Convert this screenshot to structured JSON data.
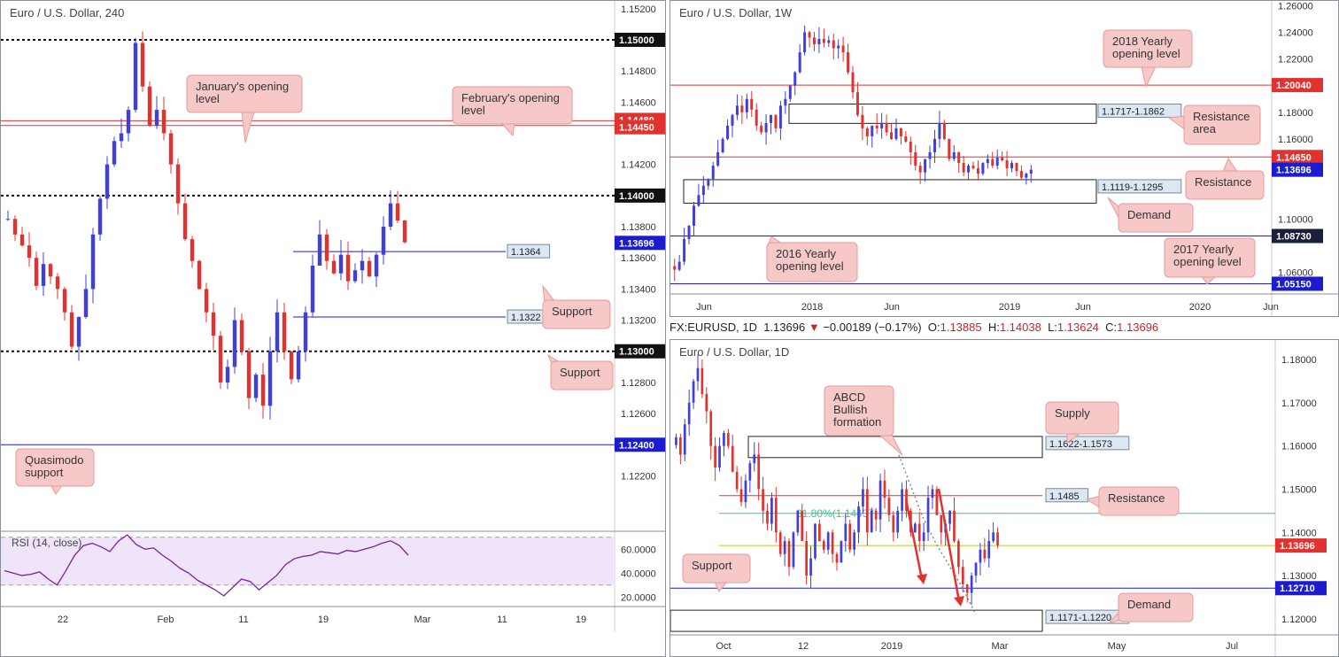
{
  "colors": {
    "bull": "#3f3fd9",
    "bear": "#e0332f",
    "red_level": "#e0332f",
    "blue_level": "#1c1ccf",
    "rsi_line": "#7a1fa2",
    "rsi_bg": "#efe4fa",
    "callout_bg": "#f6c8c8",
    "callout_border": "#e89a9a",
    "fib618": "#3cc48a",
    "fib382": "#c6c12a"
  },
  "header": {
    "symbol": "FX:EURUSD, 1D",
    "price": "1.13696",
    "arrow": "▼",
    "change": "−0.00189 (−0.17%)",
    "o_label": "O:",
    "o": "1.13885",
    "h_label": "H:",
    "h": "1.14038",
    "l_label": "L:",
    "l": "1.13624",
    "c_label": "C:",
    "c": "1.13696"
  },
  "panels": {
    "h4": {
      "title": "Euro / U.S. Dollar, 240"
    },
    "w1": {
      "title": "Euro / U.S. Dollar, 1W"
    },
    "d1": {
      "title": "Euro / U.S. Dollar, 1D"
    }
  },
  "chart_data": [
    {
      "id": "h4",
      "type": "candlestick",
      "title": "Euro / U.S. Dollar, 240",
      "ylim": [
        1.1185,
        1.1525
      ],
      "yticks": [
        "1.15200",
        "1.14800",
        "1.14600",
        "1.14200",
        "1.13800",
        "1.13600",
        "1.13400",
        "1.13200",
        "1.12800",
        "1.12600",
        "1.12200"
      ],
      "xticks": [
        "22",
        "Feb",
        "11",
        "19",
        "Mar",
        "11",
        "19"
      ],
      "levels": [
        {
          "price": 1.15,
          "label": "1.15000",
          "style": "black-dotted"
        },
        {
          "price": 1.1448,
          "label": "1.14480",
          "style": "red"
        },
        {
          "price": 1.1445,
          "label": "1.14450",
          "style": "red"
        },
        {
          "price": 1.14,
          "label": "1.14000",
          "style": "black-dotted"
        },
        {
          "price": 1.13696,
          "label": "1.13696",
          "style": "last-price"
        },
        {
          "price": 1.13,
          "label": "1.13000",
          "style": "black-dotted"
        },
        {
          "price": 1.124,
          "label": "1.12400",
          "style": "blue"
        }
      ],
      "tag_levels": [
        {
          "price": 1.1364,
          "label": "1.1364"
        },
        {
          "price": 1.1322,
          "label": "1.1322"
        }
      ],
      "annotations": [
        "January's opening level",
        "February's opening level",
        "Support",
        "Support",
        "Quasimodo support"
      ],
      "close_path": [
        1.1385,
        1.1375,
        1.1368,
        1.136,
        1.1342,
        1.1356,
        1.1348,
        1.134,
        1.1325,
        1.1303,
        1.1322,
        1.134,
        1.1375,
        1.1398,
        1.142,
        1.1435,
        1.144,
        1.1455,
        1.1498,
        1.147,
        1.1445,
        1.1455,
        1.144,
        1.142,
        1.1395,
        1.1372,
        1.1358,
        1.134,
        1.1325,
        1.131,
        1.128,
        1.129,
        1.132,
        1.13,
        1.127,
        1.1285,
        1.1265,
        1.13,
        1.1325,
        1.13,
        1.1282,
        1.13,
        1.1325,
        1.1355,
        1.1375,
        1.1358,
        1.135,
        1.1362,
        1.1345,
        1.1352,
        1.1358,
        1.1348,
        1.1362,
        1.138,
        1.1395,
        1.1384,
        1.137
      ],
      "rsi": {
        "label": "RSI (14, close)",
        "yticks": [
          "60.0000",
          "40.0000",
          "20.0000"
        ],
        "ylim": [
          15,
          75
        ],
        "values": [
          42,
          40,
          38,
          39,
          41,
          35,
          30,
          42,
          55,
          63,
          65,
          62,
          58,
          67,
          72,
          64,
          60,
          61,
          55,
          50,
          44,
          40,
          34,
          30,
          26,
          21,
          28,
          35,
          33,
          26,
          32,
          38,
          47,
          52,
          54,
          55,
          58,
          57,
          56,
          59,
          58,
          60,
          62,
          65,
          67,
          63,
          55
        ]
      }
    },
    {
      "id": "w1",
      "type": "candlestick",
      "title": "Euro / U.S. Dollar, 1W",
      "ylim": [
        1.0445,
        1.2635
      ],
      "yticks": [
        "1.26000",
        "1.24000",
        "1.22000",
        "1.18000",
        "1.16000",
        "1.10000",
        "1.06000"
      ],
      "xticks": [
        "Jun",
        "2018",
        "Jun",
        "2019",
        "Jun",
        "2020",
        "Jun"
      ],
      "levels": [
        {
          "price": 1.2004,
          "label": "1.20040",
          "style": "red"
        },
        {
          "price": 1.1465,
          "label": "1.14650",
          "style": "red"
        },
        {
          "price": 1.13696,
          "label": "1.13696",
          "style": "last-price"
        },
        {
          "price": 1.0873,
          "label": "1.08730",
          "style": "dark"
        },
        {
          "price": 1.0515,
          "label": "1.05150",
          "style": "blue"
        }
      ],
      "zones": [
        {
          "label": "1.1717-1.1862",
          "top": 1.1862,
          "bottom": 1.1717
        },
        {
          "label": "1.1119-1.1295",
          "top": 1.1295,
          "bottom": 1.1119
        }
      ],
      "annotations": [
        "2018 Yearly opening level",
        "Resistance area",
        "Resistance",
        "Demand",
        "2016 Yearly opening level",
        "2017 Yearly opening level"
      ],
      "close_path": [
        1.062,
        1.068,
        1.085,
        1.095,
        1.11,
        1.118,
        1.125,
        1.13,
        1.14,
        1.15,
        1.16,
        1.17,
        1.178,
        1.185,
        1.18,
        1.19,
        1.182,
        1.17,
        1.165,
        1.172,
        1.178,
        1.168,
        1.185,
        1.19,
        1.2,
        1.21,
        1.225,
        1.24,
        1.236,
        1.231,
        1.235,
        1.232,
        1.234,
        1.228,
        1.23,
        1.225,
        1.21,
        1.195,
        1.178,
        1.168,
        1.162,
        1.17,
        1.168,
        1.172,
        1.165,
        1.16,
        1.168,
        1.162,
        1.158,
        1.15,
        1.14,
        1.135,
        1.145,
        1.15,
        1.16,
        1.172,
        1.16,
        1.145,
        1.15,
        1.142,
        1.135,
        1.14,
        1.138,
        1.134,
        1.142,
        1.145,
        1.14,
        1.146,
        1.144,
        1.138,
        1.142,
        1.136,
        1.131,
        1.134,
        1.137
      ]
    },
    {
      "id": "d1",
      "type": "candlestick",
      "title": "Euro / U.S. Dollar, 1D",
      "ylim": [
        1.1165,
        1.1845
      ],
      "yticks": [
        "1.18000",
        "1.17000",
        "1.16000",
        "1.15000",
        "1.14000",
        "1.13000",
        "1.12000"
      ],
      "xticks": [
        "Oct",
        "12",
        "2019",
        "Mar",
        "May",
        "Jul"
      ],
      "levels": [
        {
          "price": 1.1485,
          "label": "1.1485",
          "style": "red-tag"
        },
        {
          "price": 1.1444,
          "label": "61.80%(1.14437)",
          "style": "fib"
        },
        {
          "price": 1.13696,
          "label": "1.13696",
          "style": "last-price"
        },
        {
          "price": 1.1271,
          "label": "1.12710",
          "style": "blue"
        }
      ],
      "zones": [
        {
          "label": "1.1622-1.1573",
          "top": 1.1622,
          "bottom": 1.1573
        },
        {
          "label": "1.1171-1.1220",
          "top": 1.122,
          "bottom": 1.1171
        }
      ],
      "annotations": [
        "ABCD Bullish formation",
        "Supply",
        "Resistance",
        "Support",
        "Demand"
      ],
      "close_path": [
        1.162,
        1.158,
        1.165,
        1.17,
        1.175,
        1.178,
        1.172,
        1.168,
        1.16,
        1.155,
        1.16,
        1.163,
        1.16,
        1.154,
        1.15,
        1.147,
        1.152,
        1.156,
        1.158,
        1.15,
        1.145,
        1.142,
        1.148,
        1.14,
        1.135,
        1.138,
        1.132,
        1.14,
        1.145,
        1.138,
        1.13,
        1.134,
        1.142,
        1.138,
        1.136,
        1.14,
        1.135,
        1.133,
        1.138,
        1.142,
        1.136,
        1.14,
        1.146,
        1.15,
        1.14,
        1.145,
        1.143,
        1.152,
        1.148,
        1.144,
        1.14,
        1.145,
        1.15,
        1.145,
        1.14,
        1.142,
        1.138,
        1.14,
        1.148,
        1.15,
        1.144,
        1.14,
        1.142,
        1.145,
        1.138,
        1.132,
        1.128,
        1.126,
        1.13,
        1.133,
        1.136,
        1.134,
        1.138,
        1.14,
        1.137
      ]
    }
  ]
}
